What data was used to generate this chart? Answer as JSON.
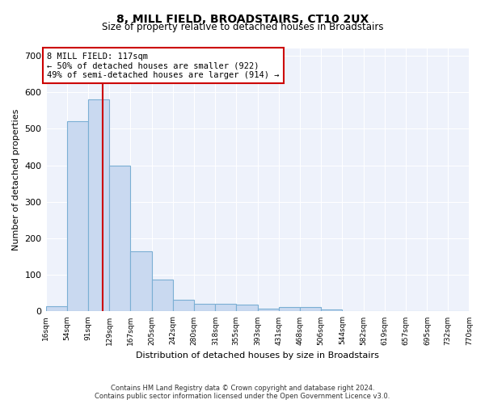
{
  "title": "8, MILL FIELD, BROADSTAIRS, CT10 2UX",
  "subtitle": "Size of property relative to detached houses in Broadstairs",
  "xlabel": "Distribution of detached houses by size in Broadstairs",
  "ylabel": "Number of detached properties",
  "bin_edges": [
    16,
    54,
    91,
    129,
    167,
    205,
    242,
    280,
    318,
    355,
    393,
    431,
    468,
    506,
    544,
    582,
    619,
    657,
    695,
    732,
    770
  ],
  "bar_heights": [
    15,
    520,
    580,
    400,
    165,
    88,
    32,
    20,
    20,
    18,
    8,
    12,
    12,
    5,
    0,
    0,
    0,
    0,
    0,
    0
  ],
  "bar_color": "#c9d9f0",
  "bar_edgecolor": "#7bafd4",
  "property_size": 117,
  "vline_color": "#cc0000",
  "annotation_text": "8 MILL FIELD: 117sqm\n← 50% of detached houses are smaller (922)\n49% of semi-detached houses are larger (914) →",
  "annotation_box_color": "#ffffff",
  "annotation_box_edgecolor": "#cc0000",
  "ylim": [
    0,
    720
  ],
  "yticks": [
    0,
    100,
    200,
    300,
    400,
    500,
    600,
    700
  ],
  "background_color": "#eef2fb",
  "footer_line1": "Contains HM Land Registry data © Crown copyright and database right 2024.",
  "footer_line2": "Contains public sector information licensed under the Open Government Licence v3.0.",
  "title_fontsize": 10,
  "subtitle_fontsize": 8.5,
  "annotation_fontsize": 7.5,
  "ylabel_fontsize": 8,
  "xlabel_fontsize": 8,
  "ytick_fontsize": 8,
  "xtick_fontsize": 6.5,
  "footer_fontsize": 6
}
